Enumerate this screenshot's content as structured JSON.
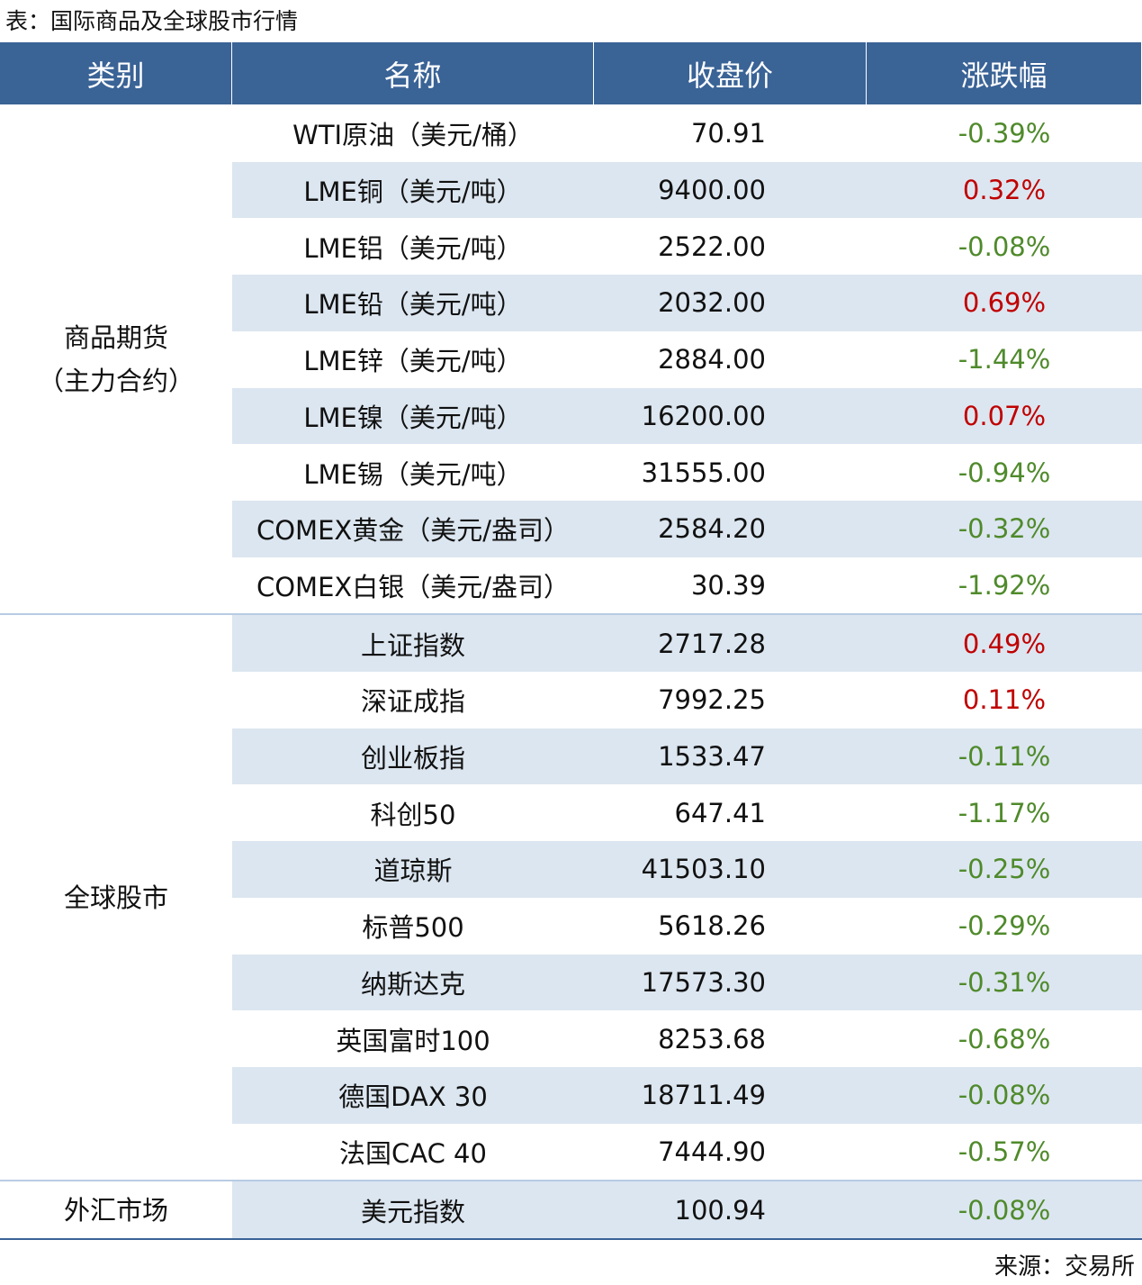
{
  "title": "表：国际商品及全球股市行情",
  "header": [
    "类别",
    "名称",
    "收盘价",
    "涨跌幅"
  ],
  "groups": [
    {
      "category": [
        "商品期货",
        "（主力合约）"
      ],
      "rows": [
        [
          "WTI原油（美元/桶）",
          "70.91",
          "-0.39%"
        ],
        [
          "LME铜（美元/吨）",
          "9400.00",
          "0.32%"
        ],
        [
          "LME铝（美元/吨）",
          "2522.00",
          "-0.08%"
        ],
        [
          "LME铅（美元/吨）",
          "2032.00",
          "0.69%"
        ],
        [
          "LME锌（美元/吨）",
          "2884.00",
          "-1.44%"
        ],
        [
          "LME镍（美元/吨）",
          "16200.00",
          "0.07%"
        ],
        [
          "LME锡（美元/吨）",
          "31555.00",
          "-0.94%"
        ],
        [
          "COMEX黄金（美元/盎司）",
          "2584.20",
          "-0.32%"
        ],
        [
          "COMEX白银（美元/盎司）",
          "30.39",
          "-1.92%"
        ]
      ]
    },
    {
      "category": [
        "全球股市"
      ],
      "rows": [
        [
          "上证指数",
          "2717.28",
          "0.49%"
        ],
        [
          "深证成指",
          "7992.25",
          "0.11%"
        ],
        [
          "创业板指",
          "1533.47",
          "-0.11%"
        ],
        [
          "科创50",
          "647.41",
          "-1.17%"
        ],
        [
          "道琼斯",
          "41503.10",
          "-0.25%"
        ],
        [
          "标普500",
          "5618.26",
          "-0.29%"
        ],
        [
          "纳斯达克",
          "17573.30",
          "-0.31%"
        ],
        [
          "英国富时100",
          "8253.68",
          "-0.68%"
        ],
        [
          "德国DAX 30",
          "18711.49",
          "-0.08%"
        ],
        [
          "法国CAC 40",
          "7444.90",
          "-0.57%"
        ]
      ]
    },
    {
      "category": [
        "外汇市场"
      ],
      "rows": [
        [
          "美元指数",
          "100.94",
          "-0.08%"
        ]
      ]
    }
  ],
  "source": "来源：交易所"
}
